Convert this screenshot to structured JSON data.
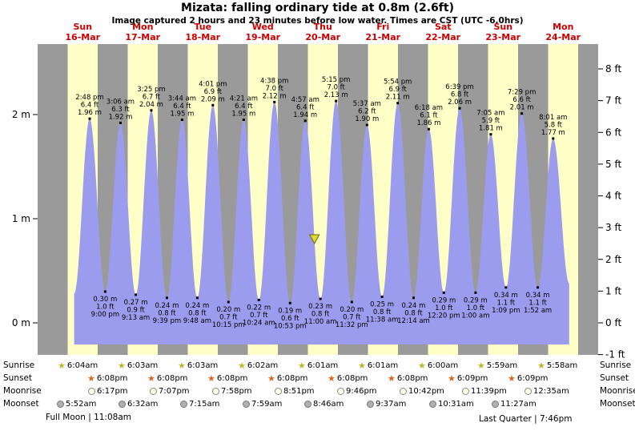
{
  "title": "Mizata: falling ordinary tide at 0.8m (2.6ft)",
  "subtitle": "Image captured 2 hours and 23 minutes before low water. Times are CST (UTC -6.0hrs)",
  "colors": {
    "night_band": "#9a9a9a",
    "day_band": "#ffffc8",
    "tide_fill": "#9c9cee",
    "day_label_red": "#cc0000",
    "marker_fill": "#d9d93a",
    "marker_stroke": "#6b6b00",
    "sunrise_star": "#b9b92a",
    "sunset_star": "#e0641e"
  },
  "chart_data": {
    "type": "area",
    "title": "Mizata: falling ordinary tide at 0.8m (2.6ft)",
    "ylabel_left": "meters",
    "ylabel_right": "feet",
    "ylim_m": [
      -0.3,
      2.68
    ],
    "grid": false,
    "legend": "none",
    "days": [
      {
        "dow": "Sun",
        "date": "16-Mar"
      },
      {
        "dow": "Mon",
        "date": "17-Mar"
      },
      {
        "dow": "Tue",
        "date": "18-Mar"
      },
      {
        "dow": "Wed",
        "date": "19-Mar"
      },
      {
        "dow": "Thu",
        "date": "20-Mar"
      },
      {
        "dow": "Fri",
        "date": "21-Mar"
      },
      {
        "dow": "Sat",
        "date": "22-Mar"
      },
      {
        "dow": "Sun",
        "date": "23-Mar"
      },
      {
        "dow": "Mon",
        "date": "24-Mar"
      }
    ],
    "y_axis_m": [
      {
        "label": "0 m",
        "value": 0
      },
      {
        "label": "1 m",
        "value": 1
      },
      {
        "label": "2 m",
        "value": 2
      }
    ],
    "y_axis_ft": [
      {
        "label": "-1 ft",
        "value": -1
      },
      {
        "label": "0 ft",
        "value": 0
      },
      {
        "label": "1 ft",
        "value": 1
      },
      {
        "label": "2 ft",
        "value": 2
      },
      {
        "label": "3 ft",
        "value": 3
      },
      {
        "label": "4 ft",
        "value": 4
      },
      {
        "label": "5 ft",
        "value": 5
      },
      {
        "label": "6 ft",
        "value": 6
      },
      {
        "label": "7 ft",
        "value": 7
      },
      {
        "label": "8 ft",
        "value": 8
      }
    ],
    "extremes": [
      {
        "day": 0,
        "kind": "high",
        "time": "2:48 pm",
        "ft": "6.4 ft",
        "m": "1.96 m"
      },
      {
        "day": 0,
        "kind": "low",
        "time": "9:00 pm",
        "ft": "1.0 ft",
        "m": "0.30 m"
      },
      {
        "day": 1,
        "kind": "high",
        "time": "3:06 am",
        "ft": "6.3 ft",
        "m": "1.92 m"
      },
      {
        "day": 1,
        "kind": "low",
        "time": "9:13 am",
        "ft": "0.9 ft",
        "m": "0.27 m"
      },
      {
        "day": 1,
        "kind": "high",
        "time": "3:25 pm",
        "ft": "6.7 ft",
        "m": "2.04 m"
      },
      {
        "day": 1,
        "kind": "low",
        "time": "9:39 pm",
        "ft": "0.8 ft",
        "m": "0.24 m"
      },
      {
        "day": 2,
        "kind": "high",
        "time": "3:44 am",
        "ft": "6.4 ft",
        "m": "1.95 m"
      },
      {
        "day": 2,
        "kind": "low",
        "time": "9:48 am",
        "ft": "0.8 ft",
        "m": "0.24 m"
      },
      {
        "day": 2,
        "kind": "high",
        "time": "4:01 pm",
        "ft": "6.9 ft",
        "m": "2.09 m"
      },
      {
        "day": 2,
        "kind": "low",
        "time": "10:15 pm",
        "ft": "0.7 ft",
        "m": "0.20 m"
      },
      {
        "day": 3,
        "kind": "high",
        "time": "4:21 am",
        "ft": "6.4 ft",
        "m": "1.95 m"
      },
      {
        "day": 3,
        "kind": "low",
        "time": "10:24 am",
        "ft": "0.7 ft",
        "m": "0.22 m"
      },
      {
        "day": 3,
        "kind": "high",
        "time": "4:38 pm",
        "ft": "7.0 ft",
        "m": "2.12 m"
      },
      {
        "day": 3,
        "kind": "low",
        "time": "10:53 pm",
        "ft": "0.6 ft",
        "m": "0.19 m"
      },
      {
        "day": 4,
        "kind": "high",
        "time": "4:57 am",
        "ft": "6.4 ft",
        "m": "1.94 m"
      },
      {
        "day": 4,
        "kind": "low",
        "time": "11:00 am",
        "ft": "0.8 ft",
        "m": "0.23 m"
      },
      {
        "day": 4,
        "kind": "high",
        "time": "5:15 pm",
        "ft": "7.0 ft",
        "m": "2.13 m"
      },
      {
        "day": 4,
        "kind": "low",
        "time": "11:32 pm",
        "ft": "0.7 ft",
        "m": "0.20 m"
      },
      {
        "day": 5,
        "kind": "high",
        "time": "5:37 am",
        "ft": "6.2 ft",
        "m": "1.90 m"
      },
      {
        "day": 5,
        "kind": "low",
        "time": "11:38 am",
        "ft": "0.8 ft",
        "m": "0.25 m"
      },
      {
        "day": 5,
        "kind": "high",
        "time": "5:54 pm",
        "ft": "6.9 ft",
        "m": "2.11 m"
      },
      {
        "day": 6,
        "kind": "low",
        "time": "12:14 am",
        "ft": "0.8 ft",
        "m": "0.24 m"
      },
      {
        "day": 6,
        "kind": "high",
        "time": "6:18 am",
        "ft": "6.1 ft",
        "m": "1.86 m"
      },
      {
        "day": 6,
        "kind": "low",
        "time": "12:20 pm",
        "ft": "1.0 ft",
        "m": "0.29 m"
      },
      {
        "day": 6,
        "kind": "high",
        "time": "6:39 pm",
        "ft": "6.8 ft",
        "m": "2.06 m"
      },
      {
        "day": 7,
        "kind": "low",
        "time": "1:00 am",
        "ft": "1.0 ft",
        "m": "0.29 m"
      },
      {
        "day": 7,
        "kind": "high",
        "time": "7:05 am",
        "ft": "5.9 ft",
        "m": "1.81 m"
      },
      {
        "day": 7,
        "kind": "low",
        "time": "1:09 pm",
        "ft": "1.1 ft",
        "m": "0.34 m"
      },
      {
        "day": 7,
        "kind": "high",
        "time": "7:29 pm",
        "ft": "6.6 ft",
        "m": "2.01 m"
      },
      {
        "day": 8,
        "kind": "low",
        "time": "1:52 am",
        "ft": "1.1 ft",
        "m": "0.34 m"
      },
      {
        "day": 8,
        "kind": "high",
        "time": "8:01 am",
        "ft": "5.8 ft",
        "m": "1.77 m"
      }
    ],
    "marker": {
      "day": 4,
      "time_approx": "8:37 am",
      "height_m": 0.8
    }
  },
  "astro": {
    "row_labels": [
      "Sunrise",
      "Sunset",
      "Moonrise",
      "Moonset"
    ],
    "sunrise": [
      {
        "day": 0,
        "time": "6:04am"
      },
      {
        "day": 1,
        "time": "6:03am"
      },
      {
        "day": 2,
        "time": "6:03am"
      },
      {
        "day": 3,
        "time": "6:02am"
      },
      {
        "day": 4,
        "time": "6:01am"
      },
      {
        "day": 5,
        "time": "6:01am"
      },
      {
        "day": 6,
        "time": "6:00am"
      },
      {
        "day": 7,
        "time": "5:59am"
      },
      {
        "day": 8,
        "time": "5:58am"
      }
    ],
    "sunset": [
      {
        "day": 0,
        "time": "6:08pm"
      },
      {
        "day": 1,
        "time": "6:08pm"
      },
      {
        "day": 2,
        "time": "6:08pm"
      },
      {
        "day": 3,
        "time": "6:08pm"
      },
      {
        "day": 4,
        "time": "6:08pm"
      },
      {
        "day": 5,
        "time": "6:08pm"
      },
      {
        "day": 6,
        "time": "6:09pm"
      },
      {
        "day": 7,
        "time": "6:09pm"
      }
    ],
    "moonrise": [
      {
        "day": 0,
        "time": "6:17pm"
      },
      {
        "day": 1,
        "time": "7:07pm"
      },
      {
        "day": 2,
        "time": "7:58pm"
      },
      {
        "day": 3,
        "time": "8:51pm"
      },
      {
        "day": 4,
        "time": "9:46pm"
      },
      {
        "day": 5,
        "time": "10:42pm"
      },
      {
        "day": 6,
        "time": "11:39pm"
      },
      {
        "day": 8,
        "time": "12:35am"
      }
    ],
    "moonset": [
      {
        "day": 0,
        "time": "5:52am"
      },
      {
        "day": 1,
        "time": "6:32am"
      },
      {
        "day": 2,
        "time": "7:15am"
      },
      {
        "day": 3,
        "time": "7:59am"
      },
      {
        "day": 4,
        "time": "8:46am"
      },
      {
        "day": 5,
        "time": "9:37am"
      },
      {
        "day": 6,
        "time": "10:31am"
      },
      {
        "day": 7,
        "time": "11:27am"
      }
    ],
    "full_moon": "Full Moon | 11:08am",
    "last_quarter": "Last Quarter | 7:46pm"
  }
}
